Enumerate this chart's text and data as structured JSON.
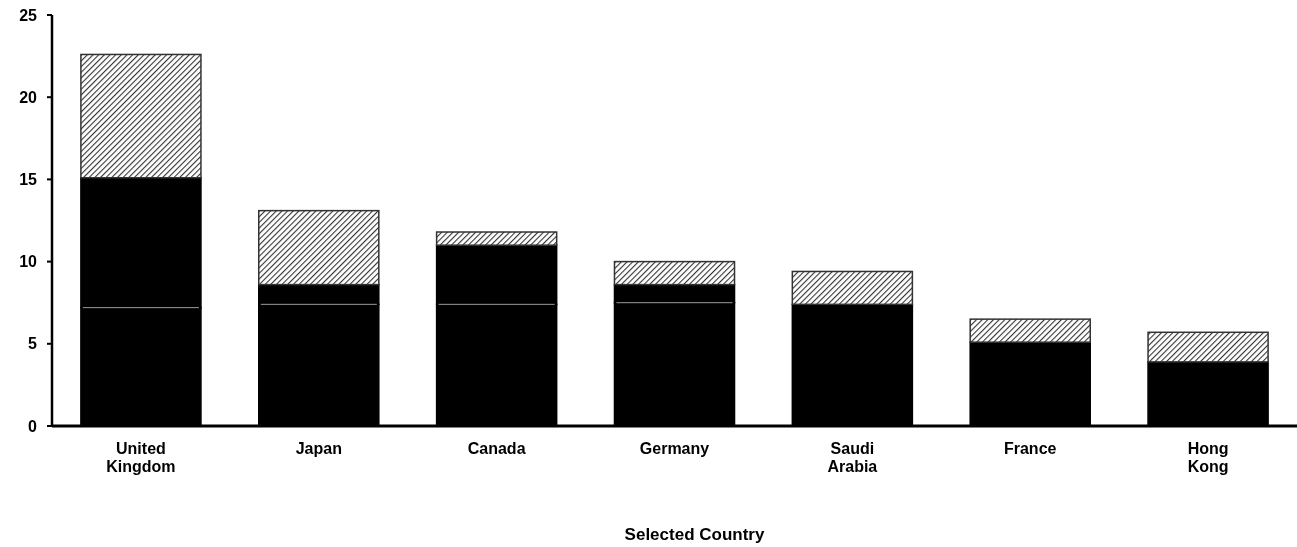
{
  "chart_data": {
    "type": "bar",
    "stacked": true,
    "xlabel": "Selected Country",
    "categories": [
      "United Kingdom",
      "Japan",
      "Canada",
      "Germany",
      "Saudi Arabia",
      "France",
      "Hong Kong"
    ],
    "series": [
      {
        "color": "#000000",
        "values": [
          7.2,
          7.4,
          7.4,
          7.5,
          7.4,
          5.1,
          3.9
        ]
      },
      {
        "color": "#000000",
        "values": [
          7.9,
          1.2,
          3.6,
          1.1,
          null,
          null,
          null
        ]
      },
      {
        "color": "#333333",
        "values": [
          7.5,
          4.5,
          0.8,
          1.4,
          2.0,
          1.4,
          1.8
        ]
      }
    ],
    "ylim": [
      0,
      25
    ],
    "yticks": [
      0,
      5,
      10,
      15,
      20,
      25
    ],
    "grid": false
  }
}
